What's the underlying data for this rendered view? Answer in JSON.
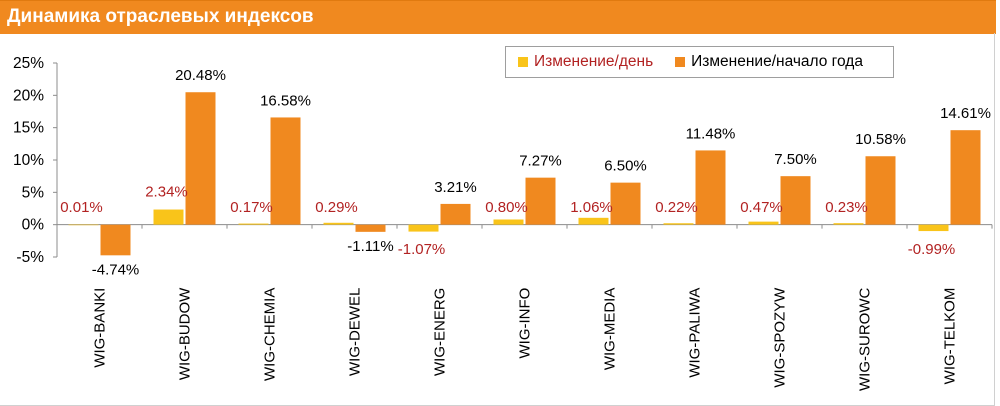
{
  "title": "Динамика отраслевых индексов",
  "colors": {
    "title_bar": "#f0891f",
    "daily": "#f9c41a",
    "ytd": "#f0891f",
    "daily_label": "#b22222",
    "ytd_label": "#000000"
  },
  "legend": {
    "daily": "Изменение/день",
    "ytd": "Изменение/начало года"
  },
  "chart_data": {
    "type": "bar",
    "title": "Динамика отраслевых индексов",
    "xlabel": "",
    "ylabel": "",
    "ylim": [
      -5,
      25
    ],
    "yticks": [
      "25%",
      "20%",
      "15%",
      "10%",
      "5%",
      "0%",
      "-5%"
    ],
    "yticks_values": [
      25,
      20,
      15,
      10,
      5,
      0,
      -5
    ],
    "grid": false,
    "legend_position": "top-right",
    "categories": [
      "WIG-BANKI",
      "WIG-BUDOW",
      "WIG-CHEMIA",
      "WIG-DEWEL",
      "WIG-ENERG",
      "WIG-INFO",
      "WIG-MEDIA",
      "WIG-PALIWA",
      "WIG-SPOZYW",
      "WIG-SUROWC",
      "WIG-TELKOM"
    ],
    "series": [
      {
        "name": "Изменение/день",
        "values": [
          0.01,
          2.34,
          0.17,
          0.29,
          -1.07,
          0.8,
          1.06,
          0.22,
          0.47,
          0.23,
          -0.99
        ],
        "labels": [
          "0.01%",
          "2.34%",
          "0.17%",
          "0.29%",
          "-1.07%",
          "0.80%",
          "1.06%",
          "0.22%",
          "0.47%",
          "0.23%",
          "-0.99%"
        ]
      },
      {
        "name": "Изменение/начало года",
        "values": [
          -4.74,
          20.48,
          16.58,
          -1.11,
          3.21,
          7.27,
          6.5,
          11.48,
          7.5,
          10.58,
          14.61
        ],
        "labels": [
          "-4.74%",
          "20.48%",
          "16.58%",
          "-1.11%",
          "3.21%",
          "7.27%",
          "6.50%",
          "11.48%",
          "7.50%",
          "10.58%",
          "14.61%"
        ]
      }
    ]
  }
}
